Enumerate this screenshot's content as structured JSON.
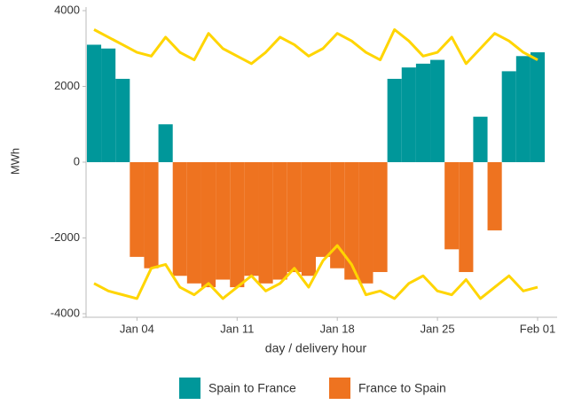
{
  "chart_data": {
    "type": "bar",
    "ylabel": "MWh",
    "xlabel": "day / delivery hour",
    "x": [
      "Jan 01",
      "Jan 02",
      "Jan 03",
      "Jan 04",
      "Jan 05",
      "Jan 06",
      "Jan 07",
      "Jan 08",
      "Jan 09",
      "Jan 10",
      "Jan 11",
      "Jan 12",
      "Jan 13",
      "Jan 14",
      "Jan 15",
      "Jan 16",
      "Jan 17",
      "Jan 18",
      "Jan 19",
      "Jan 20",
      "Jan 21",
      "Jan 22",
      "Jan 23",
      "Jan 24",
      "Jan 25",
      "Jan 26",
      "Jan 27",
      "Jan 28",
      "Jan 29",
      "Jan 30",
      "Jan 31",
      "Feb 01"
    ],
    "values": [
      3100,
      3000,
      2200,
      -2500,
      -2800,
      1000,
      -3000,
      -3200,
      -3300,
      -3100,
      -3300,
      -3000,
      -3200,
      -3100,
      -2900,
      -3000,
      -2500,
      -2800,
      -3100,
      -3200,
      -2900,
      2200,
      2500,
      2600,
      2700,
      -2300,
      -2900,
      1200,
      -1800,
      2400,
      2800,
      2900
    ],
    "legend": [
      {
        "name": "Spain to France",
        "color": "#00979a"
      },
      {
        "name": "France to Spain",
        "color": "#ee7320"
      }
    ],
    "lines": {
      "color": "#ffd500",
      "upper": [
        3500,
        3300,
        3100,
        2900,
        2800,
        3300,
        2900,
        2700,
        3400,
        3000,
        2800,
        2600,
        2900,
        3300,
        3100,
        2800,
        3000,
        3400,
        3200,
        2900,
        2700,
        3500,
        3200,
        2800,
        2900,
        3300,
        2600,
        3000,
        3400,
        3200,
        2900,
        2700
      ],
      "lower": [
        -3200,
        -3400,
        -3500,
        -3600,
        -2800,
        -2700,
        -3300,
        -3500,
        -3200,
        -3600,
        -3300,
        -3000,
        -3400,
        -3200,
        -2800,
        -3300,
        -2600,
        -2200,
        -2700,
        -3500,
        -3400,
        -3600,
        -3200,
        -3000,
        -3400,
        -3500,
        -3100,
        -3600,
        -3300,
        -3000,
        -3400,
        -3300
      ]
    },
    "ylim": [
      -4000,
      4000
    ],
    "yticks": [
      -4000,
      -2000,
      0,
      2000,
      4000
    ],
    "xticks": [
      "Jan 04",
      "Jan 11",
      "Jan 18",
      "Jan 25",
      "Feb 01"
    ]
  }
}
